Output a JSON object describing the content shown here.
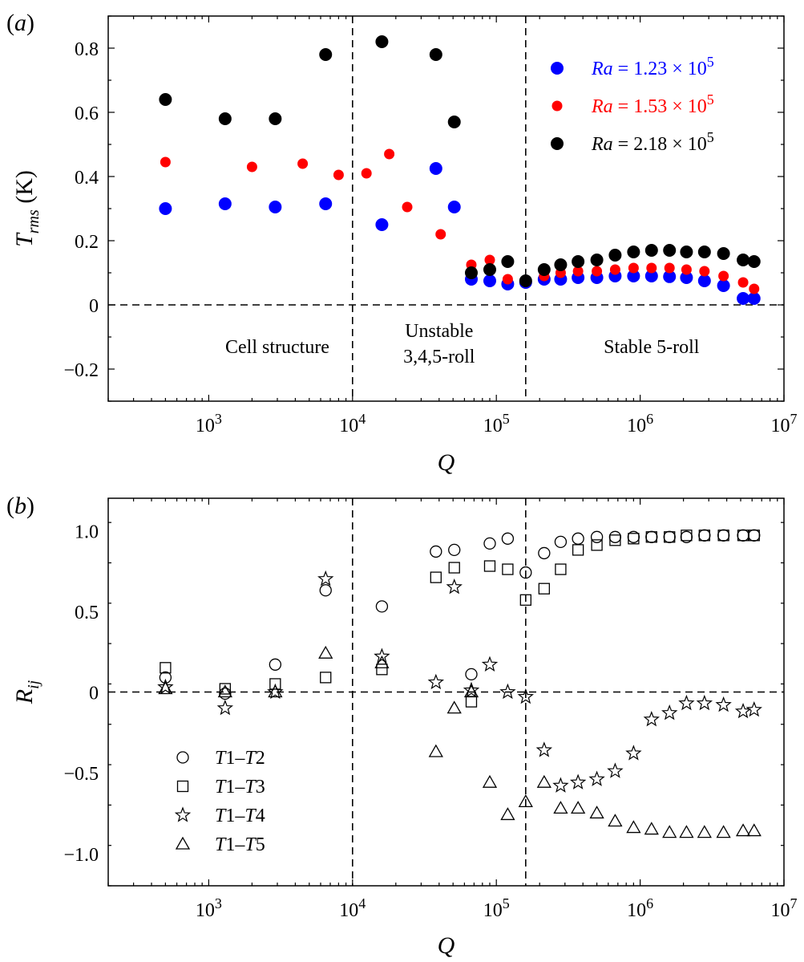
{
  "chart_data": [
    {
      "panel": "(a)",
      "type": "scatter",
      "x_scale": "log",
      "xlim": [
        200,
        10000000
      ],
      "ylim": [
        -0.3,
        0.9
      ],
      "xlabel": "Q",
      "ylabel_main": "T",
      "ylabel_sub": "rms",
      "ylabel_unit": " (K)",
      "x_ticks": [
        {
          "value": 1000,
          "base": "10",
          "exp": "3"
        },
        {
          "value": 10000,
          "base": "10",
          "exp": "4"
        },
        {
          "value": 100000,
          "base": "10",
          "exp": "5"
        },
        {
          "value": 1000000,
          "base": "10",
          "exp": "6"
        },
        {
          "value": 10000000,
          "base": "10",
          "exp": "7"
        }
      ],
      "y_ticks": [
        {
          "value": 0.8,
          "label": "0.8"
        },
        {
          "value": 0.6,
          "label": "0.6"
        },
        {
          "value": 0.4,
          "label": "0.4"
        },
        {
          "value": 0.2,
          "label": "0.2"
        },
        {
          "value": 0,
          "label": "0"
        },
        {
          "value": -0.2,
          "label": "−0.2"
        }
      ],
      "vlines": [
        10000,
        160000
      ],
      "hline": 0,
      "regions": [
        {
          "lines": [
            "Cell structure"
          ],
          "x": 3000,
          "y": -0.15
        },
        {
          "lines": [
            "Unstable",
            "3,4,5-roll"
          ],
          "x": 40000,
          "y": -0.1
        },
        {
          "lines": [
            "Stable 5-roll"
          ],
          "x": 1200000,
          "y": -0.15
        }
      ],
      "legend_position": "top-right",
      "series": [
        {
          "name": "Ra = 1.23 × 10^5",
          "legend_lhs": "Ra",
          "legend_rhs": " = 1.23 × 10",
          "legend_exp": "5",
          "color": "#0000ff",
          "marker": "filled-circle",
          "x": [
            500,
            1300,
            2900,
            6500,
            16000,
            38000,
            51000,
            67000,
            90000,
            120000,
            160000,
            215000,
            280000,
            370000,
            500000,
            670000,
            900000,
            1200000,
            1600000,
            2100000,
            2800000,
            3800000,
            5200000,
            6200000
          ],
          "y": [
            0.3,
            0.315,
            0.305,
            0.315,
            0.25,
            0.425,
            0.305,
            0.08,
            0.075,
            0.065,
            0.07,
            0.08,
            0.08,
            0.085,
            0.085,
            0.09,
            0.09,
            0.09,
            0.088,
            0.085,
            0.075,
            0.06,
            0.02,
            0.02
          ]
        },
        {
          "name": "Ra = 1.53 × 10^5",
          "legend_lhs": "Ra",
          "legend_rhs": " = 1.53 × 10",
          "legend_exp": "5",
          "color": "#ff0000",
          "marker": "filled-circle-small",
          "x": [
            500,
            2000,
            4500,
            8000,
            12500,
            18000,
            24000,
            41000,
            67000,
            90000,
            120000,
            160000,
            215000,
            280000,
            370000,
            500000,
            670000,
            900000,
            1200000,
            1600000,
            2100000,
            2800000,
            3800000,
            5200000,
            6200000
          ],
          "y": [
            0.445,
            0.43,
            0.44,
            0.405,
            0.41,
            0.47,
            0.305,
            0.22,
            0.125,
            0.14,
            0.08,
            0.075,
            0.09,
            0.1,
            0.105,
            0.105,
            0.11,
            0.115,
            0.115,
            0.115,
            0.11,
            0.105,
            0.09,
            0.07,
            0.05
          ]
        },
        {
          "name": "Ra = 2.18 × 10^5",
          "legend_lhs": "Ra",
          "legend_rhs": " = 2.18 × 10",
          "legend_exp": "5",
          "color": "#000000",
          "marker": "filled-circle",
          "x": [
            500,
            1300,
            2900,
            6500,
            16000,
            38000,
            51000,
            67000,
            90000,
            120000,
            160000,
            215000,
            280000,
            370000,
            500000,
            670000,
            900000,
            1200000,
            1600000,
            2100000,
            2800000,
            3800000,
            5200000,
            6200000
          ],
          "y": [
            0.64,
            0.58,
            0.58,
            0.78,
            0.82,
            0.78,
            0.57,
            0.1,
            0.11,
            0.135,
            0.075,
            0.11,
            0.125,
            0.135,
            0.14,
            0.155,
            0.165,
            0.17,
            0.17,
            0.165,
            0.165,
            0.16,
            0.14,
            0.135
          ]
        }
      ]
    },
    {
      "panel": "(b)",
      "type": "scatter",
      "x_scale": "log",
      "xlim": [
        200,
        10000000
      ],
      "ylim": [
        -1.2,
        1.2
      ],
      "xlabel": "Q",
      "ylabel_main": "R",
      "ylabel_sub": "ij",
      "ylabel_unit": "",
      "x_ticks": [
        {
          "value": 1000,
          "base": "10",
          "exp": "3"
        },
        {
          "value": 10000,
          "base": "10",
          "exp": "4"
        },
        {
          "value": 100000,
          "base": "10",
          "exp": "5"
        },
        {
          "value": 1000000,
          "base": "10",
          "exp": "6"
        },
        {
          "value": 10000000,
          "base": "10",
          "exp": "7"
        }
      ],
      "y_ticks": [
        {
          "value": 1.0,
          "label": "1.0"
        },
        {
          "value": 0.5,
          "label": "0.5"
        },
        {
          "value": 0,
          "label": "0"
        },
        {
          "value": -0.5,
          "label": "−0.5"
        },
        {
          "value": -1.0,
          "label": "−1.0"
        }
      ],
      "vlines": [
        10000,
        160000
      ],
      "hline": 0,
      "legend_position": "bottom-left",
      "series": [
        {
          "name": "T1–T2",
          "legend_parts": [
            "T",
            "1–",
            "T",
            "2"
          ],
          "marker": "circle",
          "x": [
            500,
            1300,
            2900,
            6500,
            16000,
            38000,
            51000,
            67000,
            90000,
            120000,
            160000,
            215000,
            280000,
            370000,
            500000,
            670000,
            900000,
            1200000,
            1600000,
            2100000,
            2800000,
            3800000,
            5200000,
            6200000
          ],
          "y": [
            0.09,
            -0.01,
            0.17,
            0.63,
            0.53,
            0.87,
            0.88,
            0.11,
            0.92,
            0.95,
            0.74,
            0.86,
            0.93,
            0.95,
            0.96,
            0.96,
            0.96,
            0.96,
            0.96,
            0.96,
            0.97,
            0.97,
            0.97,
            0.97
          ]
        },
        {
          "name": "T1–T3",
          "legend_parts": [
            "T",
            "1–",
            "T",
            "3"
          ],
          "marker": "square",
          "x": [
            500,
            1300,
            2900,
            6500,
            16000,
            38000,
            51000,
            67000,
            90000,
            120000,
            160000,
            215000,
            280000,
            370000,
            500000,
            670000,
            900000,
            1200000,
            1600000,
            2100000,
            2800000,
            3800000,
            5200000,
            6200000
          ],
          "y": [
            0.15,
            0.02,
            0.05,
            0.09,
            0.14,
            0.71,
            0.77,
            -0.06,
            0.78,
            0.76,
            0.57,
            0.64,
            0.76,
            0.88,
            0.91,
            0.94,
            0.95,
            0.96,
            0.96,
            0.97,
            0.97,
            0.97,
            0.97,
            0.97
          ]
        },
        {
          "name": "T1–T4",
          "legend_parts": [
            "T",
            "1–",
            "T",
            "4"
          ],
          "marker": "star",
          "x": [
            500,
            1300,
            2900,
            6500,
            16000,
            38000,
            51000,
            67000,
            90000,
            120000,
            160000,
            215000,
            280000,
            370000,
            500000,
            670000,
            900000,
            1200000,
            1600000,
            2100000,
            2800000,
            3800000,
            5200000,
            6200000
          ],
          "y": [
            0.03,
            -0.1,
            0.0,
            0.7,
            0.22,
            0.06,
            0.65,
            0.01,
            0.17,
            0.0,
            -0.03,
            -0.36,
            -0.58,
            -0.56,
            -0.54,
            -0.49,
            -0.38,
            -0.17,
            -0.13,
            -0.07,
            -0.07,
            -0.08,
            -0.12,
            -0.11
          ]
        },
        {
          "name": "T1–T5",
          "legend_parts": [
            "T",
            "1–",
            "T",
            "5"
          ],
          "marker": "triangle",
          "x": [
            500,
            1300,
            2900,
            6500,
            16000,
            38000,
            51000,
            67000,
            90000,
            120000,
            160000,
            215000,
            280000,
            370000,
            500000,
            670000,
            900000,
            1200000,
            1600000,
            2100000,
            2800000,
            3800000,
            5200000,
            6200000
          ],
          "y": [
            0.02,
            0.0,
            0.0,
            0.24,
            0.18,
            -0.37,
            -0.1,
            0.0,
            -0.56,
            -0.76,
            -0.68,
            -0.56,
            -0.72,
            -0.72,
            -0.75,
            -0.8,
            -0.84,
            -0.85,
            -0.87,
            -0.87,
            -0.87,
            -0.87,
            -0.86,
            -0.86
          ]
        }
      ]
    }
  ]
}
